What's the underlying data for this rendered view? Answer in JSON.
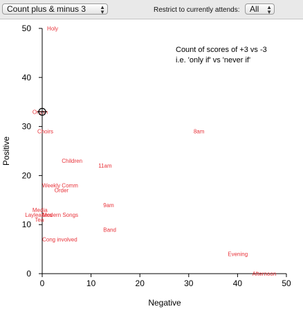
{
  "toolbar": {
    "measure_select": "Count plus & minus 3",
    "restrict_label": "Restrict to currently attends:",
    "attend_select": "All"
  },
  "chart_data": {
    "type": "scatter",
    "title": "Count of scores of +3 vs -3",
    "subtitle": "i.e. 'only if' vs 'never if'",
    "xlabel": "Negative",
    "ylabel": "Positive",
    "xlim": [
      0,
      50
    ],
    "ylim": [
      0,
      50
    ],
    "xticks": [
      0,
      10,
      20,
      30,
      40,
      50
    ],
    "yticks": [
      0,
      10,
      20,
      30,
      40,
      50
    ],
    "grid": false,
    "point_color": "#e8333a",
    "points": [
      {
        "label": "Holy",
        "x": 1,
        "y": 50
      },
      {
        "label": "Organ",
        "x": -2,
        "y": 33
      },
      {
        "label": "Choirs",
        "x": -1,
        "y": 29
      },
      {
        "label": "8am",
        "x": 31,
        "y": 29
      },
      {
        "label": "Children",
        "x": 4,
        "y": 23
      },
      {
        "label": "11am",
        "x": 11.5,
        "y": 22
      },
      {
        "label": "Weekly Comm",
        "x": 0,
        "y": 18
      },
      {
        "label": "Order",
        "x": 2.5,
        "y": 17
      },
      {
        "label": "9am",
        "x": 12.5,
        "y": 14
      },
      {
        "label": "Media",
        "x": -2,
        "y": 13
      },
      {
        "label": "Layleaders",
        "x": -3.5,
        "y": 12
      },
      {
        "label": "Modern Songs",
        "x": 0,
        "y": 12
      },
      {
        "label": "Tea",
        "x": -1.5,
        "y": 11
      },
      {
        "label": "Band",
        "x": 12.5,
        "y": 9
      },
      {
        "label": "Cong involved",
        "x": 0,
        "y": 7
      },
      {
        "label": "Evening",
        "x": 38,
        "y": 4
      },
      {
        "label": "Afternoon",
        "x": 43,
        "y": 0
      }
    ],
    "cursor": {
      "x": 0,
      "y": 33
    }
  }
}
